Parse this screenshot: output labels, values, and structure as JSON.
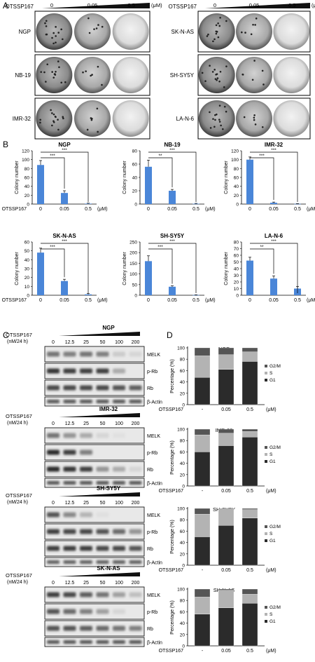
{
  "panel_labels": {
    "a": "A",
    "b": "B",
    "c": "C",
    "d": "D"
  },
  "panel_a": {
    "drug": "OTSSP167",
    "doses": [
      "0",
      "0.05",
      "0.5"
    ],
    "unit": "(μM)",
    "left_rows": [
      "NGP",
      "NB-19",
      "IMR-32"
    ],
    "right_rows": [
      "SK-N-AS",
      "SH-SY5Y",
      "LA-N-6"
    ]
  },
  "panel_b": {
    "drug": "OTSSP167",
    "categories": [
      "0",
      "0.05",
      "0.5"
    ],
    "unit": "(μM)",
    "ylabel": "Colony number"
  },
  "panel_c": {
    "drug": "OTSSP167",
    "treatment": "(nM/24 h)",
    "doses": [
      "0",
      "12.5",
      "25",
      "50",
      "100",
      "200"
    ],
    "bands": [
      "MELK",
      "p-Rb",
      "Rb",
      "β-Actin"
    ],
    "blots": [
      {
        "cell": "NGP",
        "intensity": {
          "MELK": [
            0.55,
            0.5,
            0.55,
            0.5,
            0.15,
            0.1
          ],
          "p-Rb": [
            0.85,
            0.8,
            0.8,
            0.8,
            0.3,
            0.0
          ],
          "Rb": [
            0.75,
            0.75,
            0.75,
            0.75,
            0.7,
            0.65
          ],
          "β-Actin": [
            0.7,
            0.7,
            0.7,
            0.7,
            0.7,
            0.7
          ]
        }
      },
      {
        "cell": "IMR-32",
        "intensity": {
          "MELK": [
            0.55,
            0.4,
            0.3,
            0.1,
            0.05,
            0.0
          ],
          "p-Rb": [
            0.9,
            0.8,
            0.5,
            0.0,
            0.0,
            0.0
          ],
          "Rb": [
            0.9,
            0.85,
            0.8,
            0.4,
            0.3,
            0.1
          ],
          "β-Actin": [
            0.7,
            0.7,
            0.7,
            0.7,
            0.7,
            0.7
          ]
        }
      },
      {
        "cell": "SH-SY5Y",
        "intensity": {
          "MELK": [
            0.7,
            0.45,
            0.25,
            0.05,
            0.0,
            0.0
          ],
          "p-Rb": [
            0.8,
            0.75,
            0.75,
            0.7,
            0.6,
            0.4
          ],
          "Rb": [
            0.8,
            0.8,
            0.8,
            0.75,
            0.75,
            0.7
          ],
          "β-Actin": [
            0.65,
            0.65,
            0.65,
            0.65,
            0.65,
            0.65
          ]
        }
      },
      {
        "cell": "SK-N-AS",
        "intensity": {
          "MELK": [
            0.8,
            0.75,
            0.65,
            0.55,
            0.35,
            0.2
          ],
          "p-Rb": [
            0.7,
            0.6,
            0.5,
            0.35,
            0.1,
            0.0
          ],
          "Rb": [
            0.7,
            0.7,
            0.65,
            0.6,
            0.55,
            0.5
          ],
          "β-Actin": [
            0.7,
            0.7,
            0.7,
            0.7,
            0.7,
            0.7
          ]
        }
      }
    ]
  },
  "panel_d": {
    "drug": "OTSSP167",
    "categories": [
      "-",
      "0.05",
      "0.5"
    ],
    "unit": "(μM)",
    "ylabel": "Percentage (%)",
    "legend": [
      "G2/M",
      "S",
      "G1"
    ],
    "colors": {
      "G1": "#2b2b2b",
      "S": "#b3b3b3",
      "G2/M": "#555555"
    }
  },
  "chart_data": [
    {
      "type": "bar",
      "title": "NGP",
      "categories": [
        "0",
        "0.05",
        "0.5"
      ],
      "values": [
        88,
        25,
        1
      ],
      "errors": [
        10,
        5,
        1
      ],
      "ylabel": "Colony number",
      "ylim": [
        0,
        120
      ],
      "yticks": [
        0,
        20,
        40,
        60,
        80,
        100,
        120
      ],
      "sig": [
        "***",
        "***"
      ]
    },
    {
      "type": "bar",
      "title": "NB-19",
      "categories": [
        "0",
        "0.05",
        "0.5"
      ],
      "values": [
        56,
        20,
        0.5
      ],
      "errors": [
        10,
        2,
        0.5
      ],
      "ylabel": "Colony number",
      "ylim": [
        0,
        80
      ],
      "yticks": [
        0,
        20,
        40,
        60,
        80
      ],
      "sig": [
        "**",
        "***"
      ]
    },
    {
      "type": "bar",
      "title": "IMR-32",
      "categories": [
        "0",
        "0.05",
        "0.5"
      ],
      "values": [
        100,
        3,
        0.5
      ],
      "errors": [
        6,
        1.5,
        0.5
      ],
      "ylabel": "Colony number",
      "ylim": [
        0,
        120
      ],
      "yticks": [
        0,
        20,
        40,
        60,
        80,
        100,
        120
      ],
      "sig": [
        "***",
        "***"
      ]
    },
    {
      "type": "bar",
      "title": "SK-N-AS",
      "categories": [
        "0",
        "0.05",
        "0.5"
      ],
      "values": [
        48,
        16,
        1
      ],
      "errors": [
        5,
        2,
        1
      ],
      "ylabel": "Colony number",
      "ylim": [
        0,
        60
      ],
      "yticks": [
        0,
        10,
        20,
        30,
        40,
        50,
        60
      ],
      "sig": [
        "***",
        "***"
      ]
    },
    {
      "type": "bar",
      "title": "SH-SY5Y",
      "categories": [
        "0",
        "0.05",
        "0.5"
      ],
      "values": [
        160,
        40,
        1
      ],
      "errors": [
        25,
        4,
        1
      ],
      "ylabel": "Colony number",
      "ylim": [
        0,
        250
      ],
      "yticks": [
        0,
        50,
        100,
        150,
        200,
        250
      ],
      "sig": [
        "***",
        "***"
      ]
    },
    {
      "type": "bar",
      "title": "LA-N-6",
      "categories": [
        "0",
        "0.05",
        "0.5"
      ],
      "values": [
        52,
        25,
        10
      ],
      "errors": [
        5,
        4,
        3
      ],
      "ylabel": "Colony number",
      "ylim": [
        0,
        80
      ],
      "yticks": [
        0,
        10,
        20,
        30,
        40,
        50,
        60,
        70,
        80
      ],
      "sig": [
        "**",
        "***"
      ]
    },
    {
      "type": "bar",
      "title": "NGP",
      "stacked": true,
      "categories": [
        "-",
        "0.05",
        "0.5"
      ],
      "series": [
        {
          "name": "G1",
          "values": [
            48,
            62,
            76
          ]
        },
        {
          "name": "S",
          "values": [
            38,
            26,
            17
          ]
        },
        {
          "name": "G2/M",
          "values": [
            14,
            12,
            7
          ]
        }
      ],
      "ylabel": "Percentage (%)",
      "ylim": [
        0,
        100
      ],
      "yticks": [
        0,
        20,
        40,
        60,
        80,
        100
      ]
    },
    {
      "type": "bar",
      "title": "IMR-32",
      "stacked": true,
      "categories": [
        "-",
        "0.05",
        "0.5"
      ],
      "series": [
        {
          "name": "G1",
          "values": [
            60,
            71,
            86
          ]
        },
        {
          "name": "S",
          "values": [
            30,
            22,
            10
          ]
        },
        {
          "name": "G2/M",
          "values": [
            10,
            7,
            4
          ]
        }
      ],
      "ylabel": "Percentage (%)",
      "ylim": [
        0,
        100
      ],
      "yticks": [
        0,
        20,
        40,
        60,
        80,
        100
      ]
    },
    {
      "type": "bar",
      "title": "SH-SY5Y",
      "stacked": true,
      "categories": [
        "-",
        "0.05",
        "0.5"
      ],
      "series": [
        {
          "name": "G1",
          "values": [
            50,
            70,
            83
          ]
        },
        {
          "name": "S",
          "values": [
            40,
            29,
            15
          ]
        },
        {
          "name": "G2/M",
          "values": [
            10,
            1,
            2
          ]
        }
      ],
      "ylabel": "Percentage (%)",
      "ylim": [
        0,
        100
      ],
      "yticks": [
        0,
        20,
        40,
        60,
        80,
        100
      ]
    },
    {
      "type": "bar",
      "title": "SK-N-AS",
      "stacked": true,
      "categories": [
        "-",
        "0.05",
        "0.5"
      ],
      "series": [
        {
          "name": "G1",
          "values": [
            56,
            67,
            75
          ]
        },
        {
          "name": "S",
          "values": [
            30,
            31,
            16
          ]
        },
        {
          "name": "G2/M",
          "values": [
            14,
            2,
            9
          ]
        }
      ],
      "ylabel": "Percentage (%)",
      "ylim": [
        0,
        100
      ],
      "yticks": [
        0,
        20,
        40,
        60,
        80,
        100
      ]
    }
  ]
}
